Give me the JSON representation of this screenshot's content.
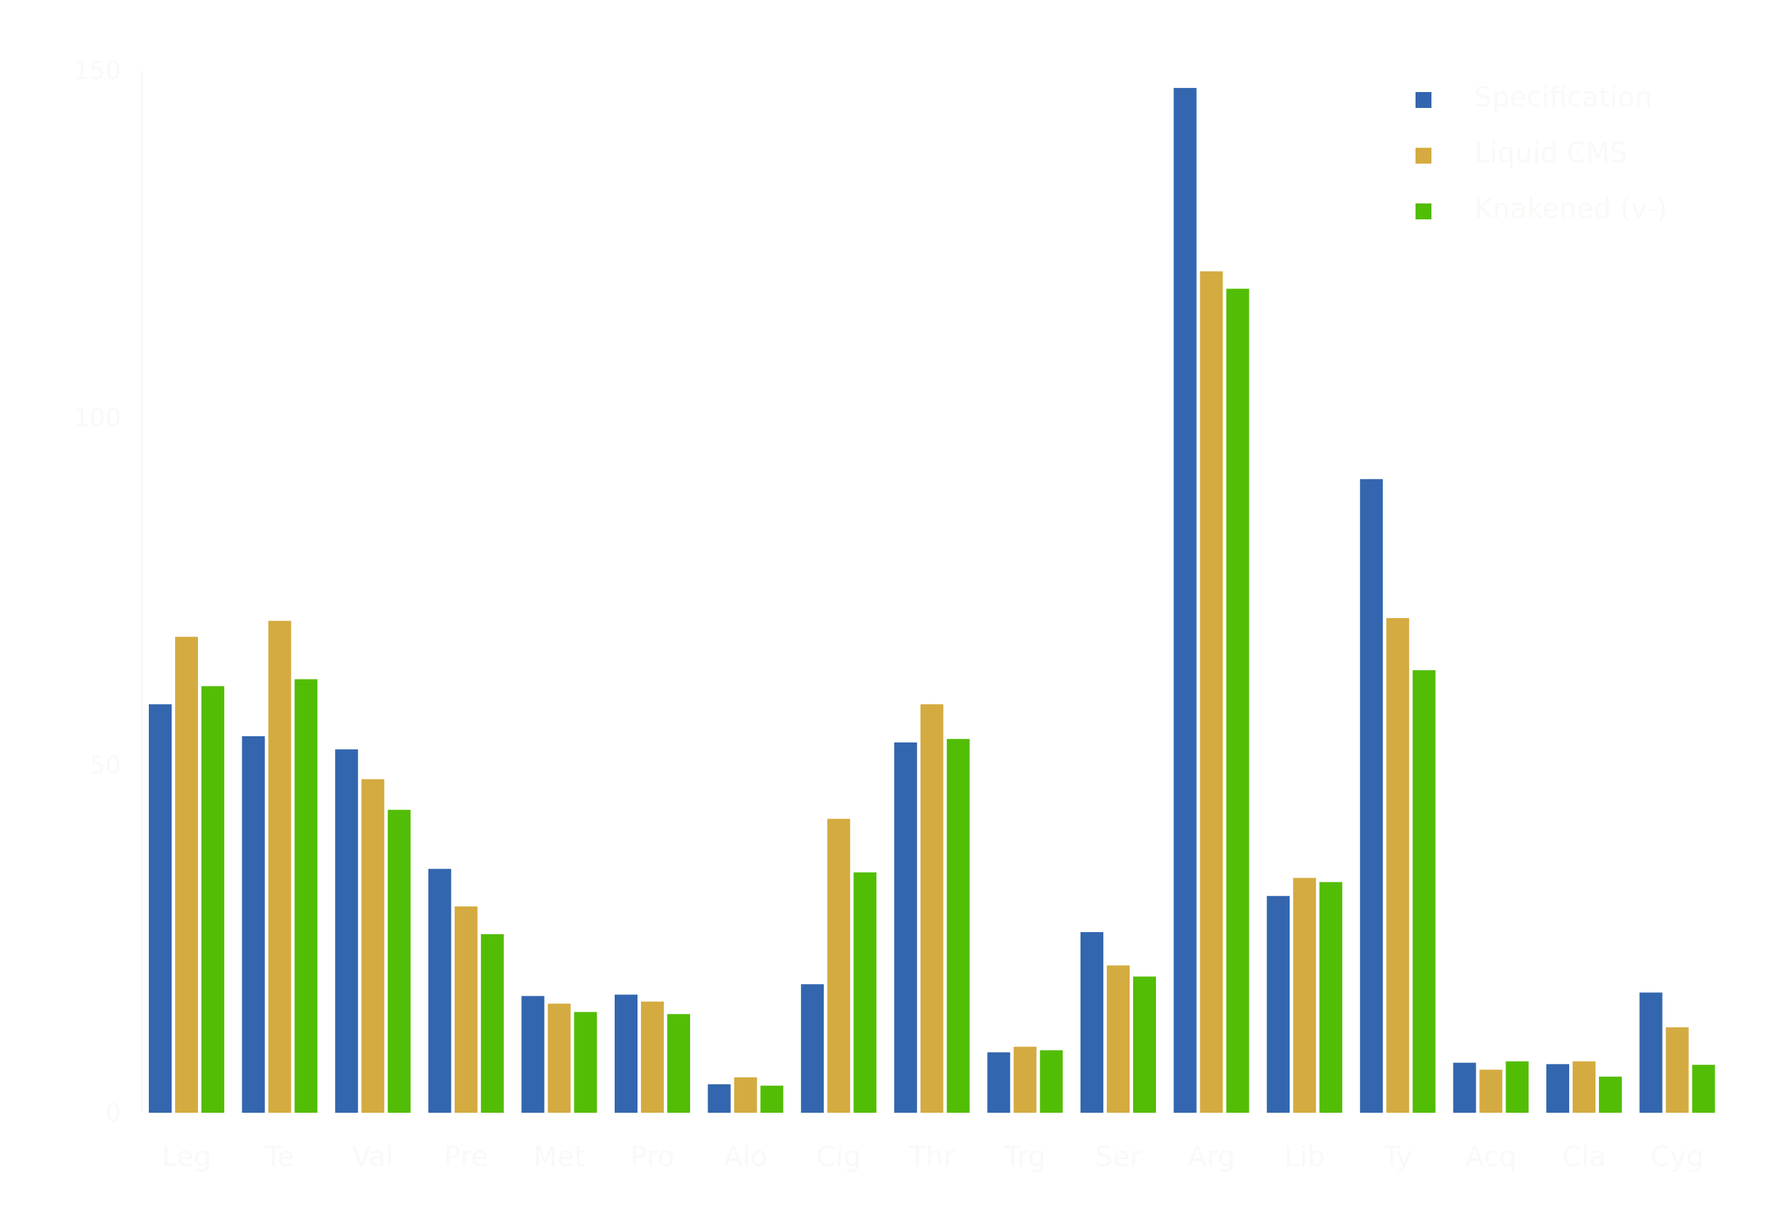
{
  "chart_data": {
    "type": "bar",
    "title": "",
    "xlabel": "",
    "ylabel": "",
    "ylim": [
      0,
      150
    ],
    "yticks": [
      "0",
      "50",
      "100",
      "150"
    ],
    "grid": false,
    "legend_position": "top-right",
    "categories": [
      "Leg",
      "Te",
      "Val",
      "Pre",
      "Met",
      "Pro",
      "Alo",
      "Cig",
      "Thr",
      "Trg",
      "Ser",
      "Arg",
      "Lib",
      "Ty",
      "Acq",
      "Cla",
      "Cyg"
    ],
    "series": [
      {
        "name": "Specification",
        "color": "#3366ae",
        "values": [
          58.8,
          54.2,
          52.3,
          35.1,
          16.8,
          17.0,
          4.1,
          18.5,
          53.3,
          8.7,
          26.0,
          147.5,
          31.2,
          91.2,
          7.2,
          7.0,
          17.3
        ]
      },
      {
        "name": "Liquid CMS",
        "color": "#d4ab40",
        "values": [
          68.5,
          70.8,
          48.0,
          29.7,
          15.7,
          16.0,
          5.1,
          42.3,
          58.8,
          9.5,
          21.2,
          121.1,
          33.8,
          71.2,
          6.2,
          7.4,
          12.3
        ]
      },
      {
        "name": "Knakened (v-)",
        "color": "#52bd05",
        "values": [
          61.4,
          62.4,
          43.6,
          25.7,
          14.5,
          14.2,
          3.9,
          34.6,
          53.8,
          9.0,
          19.6,
          118.6,
          33.2,
          63.7,
          7.4,
          5.2,
          6.9
        ]
      }
    ]
  }
}
